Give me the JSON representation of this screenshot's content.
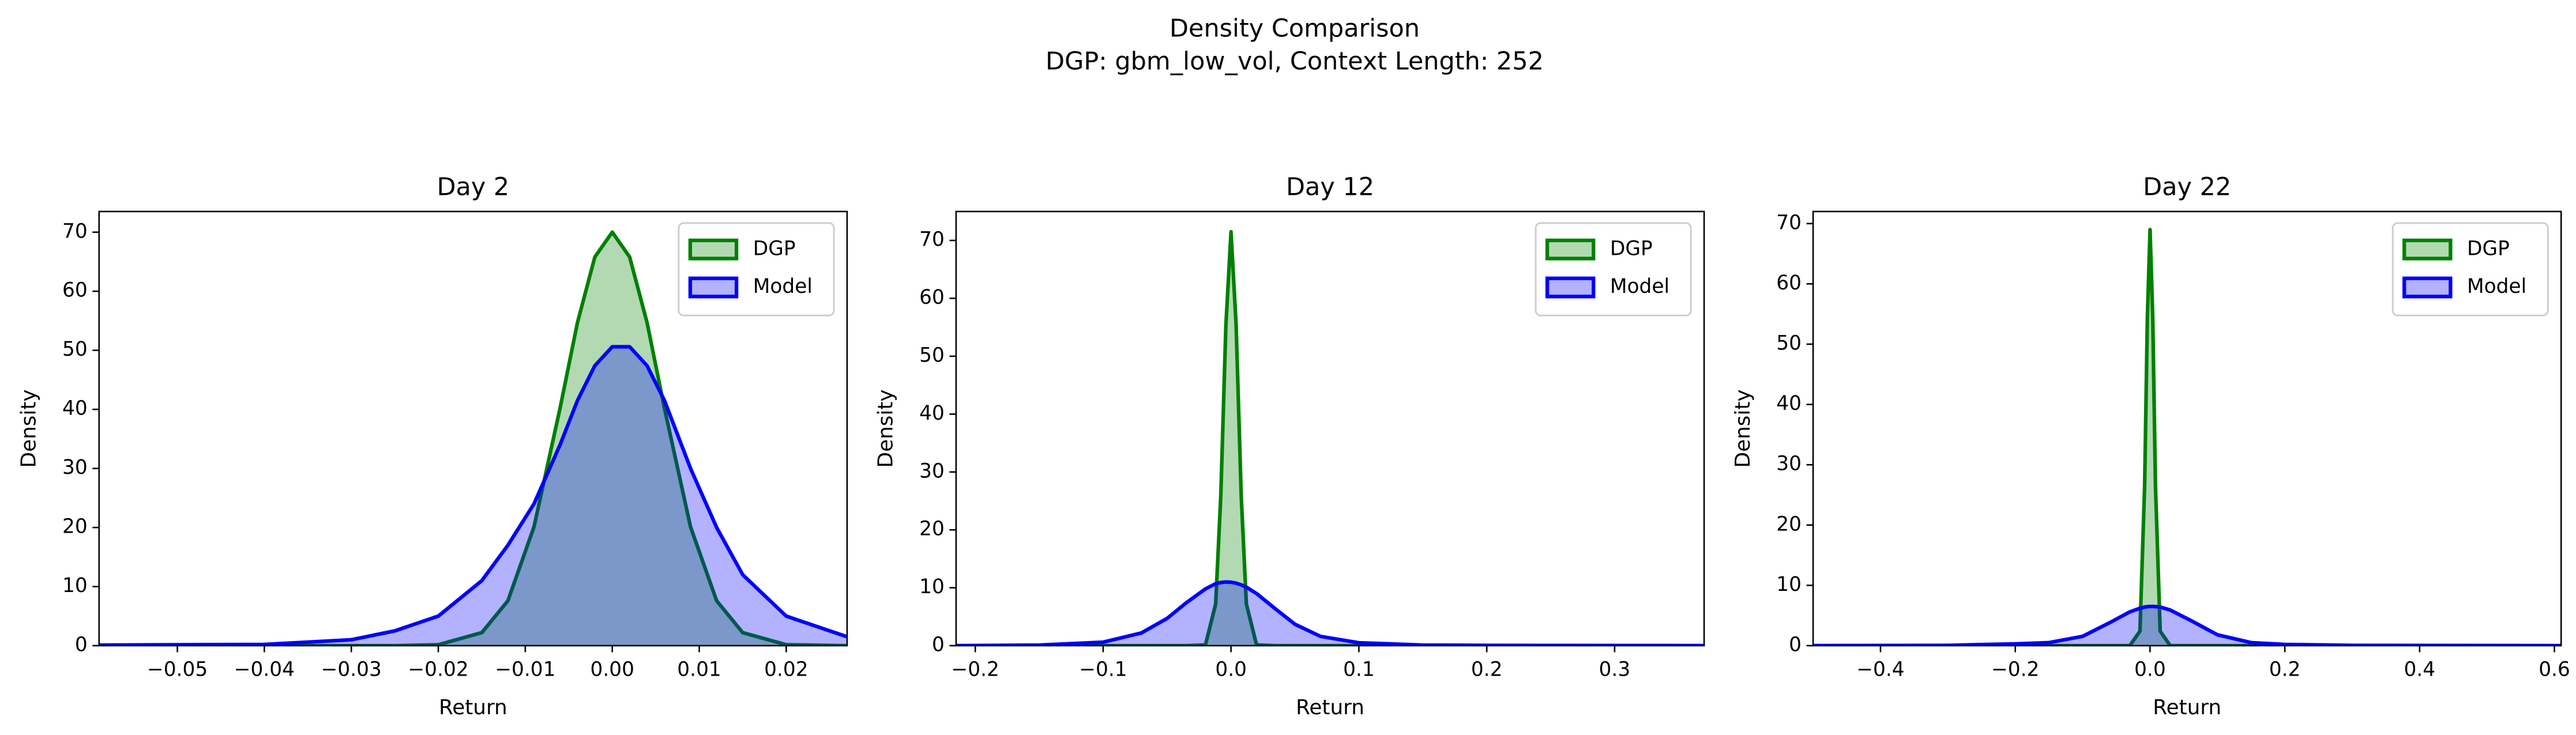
{
  "title": "Density Comparison",
  "subtitle": "DGP: gbm_low_vol, Context Length: 252",
  "chart_data": [
    {
      "type": "area",
      "title": "Day 2",
      "x_label": "Return",
      "y_label": "Density",
      "legend": "upper right",
      "x": [
        -0.059,
        -0.04,
        -0.03,
        -0.025,
        -0.02,
        -0.015,
        -0.012,
        -0.009,
        -0.006,
        -0.004,
        -0.002,
        0,
        0.002,
        0.004,
        0.006,
        0.009,
        0.012,
        0.015,
        0.02,
        0.027
      ],
      "xlim": [
        -0.059,
        0.027
      ],
      "xticks": [
        {
          "value": -0.05,
          "label": "−0.05"
        },
        {
          "value": -0.04,
          "label": "−0.04"
        },
        {
          "value": -0.03,
          "label": "−0.03"
        },
        {
          "value": -0.02,
          "label": "−0.02"
        },
        {
          "value": -0.01,
          "label": "−0.01"
        },
        {
          "value": 0,
          "label": "0.00"
        },
        0.01,
        0.02
      ],
      "ylim": [
        0,
        73.5
      ],
      "yticks": [
        0,
        10,
        20,
        30,
        40,
        50,
        60,
        70
      ],
      "series": [
        {
          "name": "DGP",
          "color": "#008000",
          "values": [
            0,
            0,
            0,
            0,
            0.15,
            2.2,
            7.6,
            20.1,
            40.2,
            54.7,
            65.8,
            70,
            65.8,
            54.7,
            40.2,
            20.1,
            7.6,
            2.2,
            0.15,
            0
          ]
        },
        {
          "name": "Model",
          "color": "#0000ff",
          "values": [
            0.1,
            0.2,
            1,
            2.5,
            5,
            11,
            17,
            24,
            34,
            41.5,
            47.4,
            50.6,
            50.6,
            47.4,
            41.5,
            30,
            20,
            12,
            5,
            1.5
          ]
        }
      ]
    },
    {
      "type": "area",
      "title": "Day 12",
      "x_label": "Return",
      "y_label": "Density",
      "legend": "upper right",
      "x": [
        -0.215,
        -0.15,
        -0.1,
        -0.07,
        -0.05,
        -0.035,
        -0.02,
        -0.012,
        -0.008,
        -0.004,
        0,
        0.004,
        0.008,
        0.012,
        0.02,
        0.035,
        0.05,
        0.07,
        0.1,
        0.15,
        0.2,
        0.37
      ],
      "xlim": [
        -0.215,
        0.37
      ],
      "xticks": [
        {
          "value": -0.2,
          "label": "−0.2"
        },
        {
          "value": -0.1,
          "label": "−0.1"
        },
        {
          "value": 0,
          "label": "0.0"
        },
        0.1,
        0.2,
        0.3
      ],
      "ylim": [
        0,
        75
      ],
      "yticks": [
        0,
        10,
        20,
        30,
        40,
        50,
        60,
        70
      ],
      "series": [
        {
          "name": "DGP",
          "color": "#008000",
          "values": [
            0,
            0,
            0,
            0,
            0,
            0,
            0.12,
            7.2,
            25.8,
            55.4,
            71.5,
            55.4,
            25.8,
            7.2,
            0.12,
            0,
            0,
            0,
            0,
            0,
            0,
            0
          ]
        },
        {
          "name": "Model",
          "color": "#0000ff",
          "values": [
            0,
            0.1,
            0.6,
            2.2,
            4.7,
            7.4,
            9.8,
            10.7,
            10.9,
            11,
            10.96,
            10.8,
            10.5,
            10.1,
            9,
            6.3,
            3.7,
            1.6,
            0.5,
            0.1,
            0.05,
            0
          ]
        }
      ]
    },
    {
      "type": "area",
      "title": "Day 22",
      "x_label": "Return",
      "y_label": "Density",
      "legend": "upper right",
      "x": [
        -0.5,
        -0.3,
        -0.2,
        -0.15,
        -0.1,
        -0.06,
        -0.03,
        -0.015,
        -0.008,
        -0.004,
        0,
        0.004,
        0.008,
        0.015,
        0.03,
        0.06,
        0.1,
        0.15,
        0.2,
        0.3,
        0.61
      ],
      "xlim": [
        -0.5,
        0.61
      ],
      "xticks": [
        {
          "value": -0.4,
          "label": "−0.4"
        },
        {
          "value": -0.2,
          "label": "−0.2"
        },
        {
          "value": 0,
          "label": "0.0"
        },
        0.2,
        0.4,
        0.6
      ],
      "ylim": [
        0,
        72
      ],
      "yticks": [
        0,
        10,
        20,
        30,
        40,
        50,
        60,
        70
      ],
      "series": [
        {
          "name": "DGP",
          "color": "#008000",
          "values": [
            0,
            0,
            0,
            0,
            0,
            0,
            0,
            2.4,
            26.7,
            54.4,
            69,
            54.4,
            26.7,
            2.4,
            0,
            0,
            0,
            0,
            0,
            0,
            0
          ]
        },
        {
          "name": "Model",
          "color": "#0000ff",
          "values": [
            0,
            0.05,
            0.3,
            0.5,
            1.55,
            3.8,
            5.6,
            6.2,
            6.4,
            6.46,
            6.5,
            6.5,
            6.48,
            6.4,
            5.9,
            4.2,
            1.8,
            0.5,
            0.2,
            0.05,
            0
          ]
        }
      ]
    }
  ]
}
